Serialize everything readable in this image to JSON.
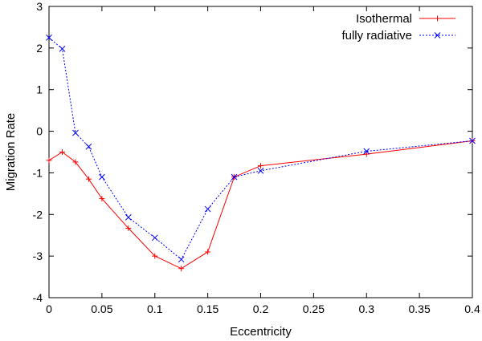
{
  "chart_data": {
    "type": "line",
    "title": "",
    "xlabel": "Eccentricity",
    "ylabel": "Migration Rate",
    "xlim": [
      0,
      0.4
    ],
    "ylim": [
      -4,
      3
    ],
    "xticks": [
      0,
      0.05,
      0.1,
      0.15,
      0.2,
      0.25,
      0.3,
      0.35,
      0.4
    ],
    "xtick_labels": [
      "0",
      "0.05",
      "0.1",
      "0.15",
      "0.2",
      "0.25",
      "0.3",
      "0.35",
      "0.4"
    ],
    "yticks": [
      -4,
      -3,
      -2,
      -1,
      0,
      1,
      2,
      3
    ],
    "ytick_labels": [
      "-4",
      "-3",
      "-2",
      "-1",
      "0",
      "1",
      "2",
      "3"
    ],
    "grid": false,
    "legend_position": "top-right",
    "series": [
      {
        "name": "Isothermal",
        "color": "#ff0000",
        "line_style": "solid",
        "marker": "plus",
        "x": [
          0,
          0.0125,
          0.025,
          0.0375,
          0.05,
          0.075,
          0.1,
          0.125,
          0.15,
          0.175,
          0.2,
          0.3,
          0.4
        ],
        "y": [
          -0.7,
          -0.5,
          -0.74,
          -1.15,
          -1.62,
          -2.33,
          -3.0,
          -3.3,
          -2.9,
          -1.1,
          -0.83,
          -0.55,
          -0.23
        ]
      },
      {
        "name": "fully radiative",
        "color": "#0000ff",
        "line_style": "dotted",
        "marker": "cross",
        "x": [
          0,
          0.0125,
          0.025,
          0.0375,
          0.05,
          0.075,
          0.1,
          0.125,
          0.15,
          0.175,
          0.2,
          0.3,
          0.4
        ],
        "y": [
          2.25,
          1.98,
          -0.04,
          -0.37,
          -1.1,
          -2.07,
          -2.56,
          -3.08,
          -1.87,
          -1.1,
          -0.95,
          -0.48,
          -0.23
        ]
      }
    ]
  }
}
